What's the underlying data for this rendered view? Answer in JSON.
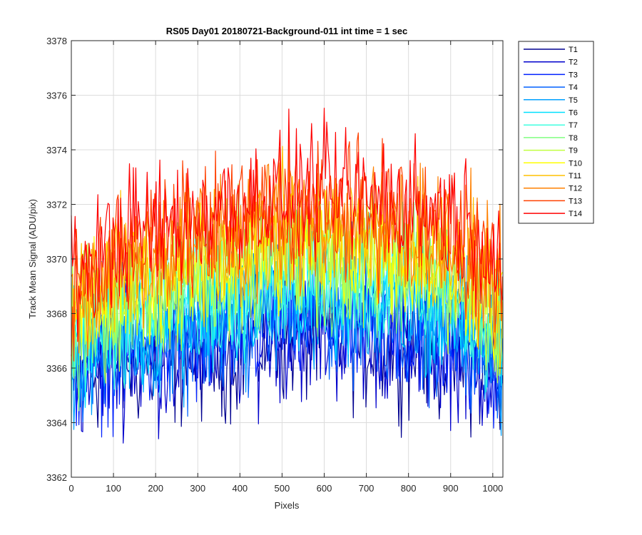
{
  "chart_data": {
    "type": "line",
    "title": "RS05 Day01 20180721-Background-011 int time = 1 sec",
    "xlabel": "Pixels",
    "ylabel": "Track Mean Signal (ADU/pix)",
    "xlim": [
      0,
      1024
    ],
    "ylim": [
      3362,
      3378
    ],
    "xticks": [
      0,
      100,
      200,
      300,
      400,
      500,
      600,
      700,
      800,
      900,
      1000
    ],
    "yticks": [
      3362,
      3364,
      3366,
      3368,
      3370,
      3372,
      3374,
      3376,
      3378
    ],
    "grid": true,
    "legend_position": "outside-right",
    "x_points": [
      0,
      50,
      100,
      150,
      200,
      250,
      300,
      350,
      400,
      450,
      500,
      550,
      600,
      650,
      700,
      750,
      800,
      850,
      900,
      950,
      1000,
      1023
    ],
    "noise_amplitude": 1.2,
    "series": [
      {
        "name": "T1",
        "color": "#00008f",
        "values": [
          3365.5,
          3366.0,
          3366.2,
          3366.3,
          3366.2,
          3366.3,
          3366.5,
          3366.6,
          3366.8,
          3367.0,
          3367.2,
          3367.2,
          3367.2,
          3367.1,
          3367.0,
          3367.0,
          3366.8,
          3366.7,
          3366.5,
          3366.2,
          3365.8,
          3365.5
        ]
      },
      {
        "name": "T2",
        "color": "#0000cc",
        "values": [
          3365.6,
          3366.1,
          3366.3,
          3366.4,
          3366.3,
          3366.4,
          3366.6,
          3366.7,
          3366.9,
          3367.1,
          3367.3,
          3367.3,
          3367.3,
          3367.2,
          3367.1,
          3367.1,
          3366.9,
          3366.8,
          3366.6,
          3366.3,
          3365.9,
          3365.6
        ]
      },
      {
        "name": "T3",
        "color": "#0020ff",
        "values": [
          3365.8,
          3366.3,
          3366.5,
          3366.7,
          3366.6,
          3366.8,
          3367.0,
          3367.1,
          3367.3,
          3367.5,
          3367.7,
          3367.7,
          3367.7,
          3367.6,
          3367.5,
          3367.5,
          3367.3,
          3367.2,
          3367.0,
          3366.6,
          3366.2,
          3365.9
        ]
      },
      {
        "name": "T4",
        "color": "#0060ff",
        "values": [
          3366.0,
          3366.5,
          3366.8,
          3367.0,
          3366.9,
          3367.1,
          3367.4,
          3367.5,
          3367.7,
          3367.9,
          3368.1,
          3368.1,
          3368.1,
          3368.0,
          3367.9,
          3367.9,
          3367.7,
          3367.6,
          3367.4,
          3367.0,
          3366.5,
          3366.2
        ]
      },
      {
        "name": "T5",
        "color": "#00a0ff",
        "values": [
          3366.3,
          3366.8,
          3367.1,
          3367.4,
          3367.3,
          3367.5,
          3367.8,
          3367.9,
          3368.1,
          3368.3,
          3368.5,
          3368.5,
          3368.5,
          3368.4,
          3368.3,
          3368.3,
          3368.1,
          3368.0,
          3367.8,
          3367.4,
          3366.9,
          3366.5
        ]
      },
      {
        "name": "T6",
        "color": "#00e0ff",
        "values": [
          3366.6,
          3367.1,
          3367.5,
          3367.8,
          3367.7,
          3367.9,
          3368.2,
          3368.4,
          3368.6,
          3368.8,
          3369.0,
          3369.0,
          3369.0,
          3368.9,
          3368.8,
          3368.8,
          3368.6,
          3368.4,
          3368.2,
          3367.8,
          3367.3,
          3366.8
        ]
      },
      {
        "name": "T7",
        "color": "#40ffe0",
        "values": [
          3366.9,
          3367.4,
          3367.8,
          3368.2,
          3368.1,
          3368.3,
          3368.6,
          3368.8,
          3369.0,
          3369.2,
          3369.4,
          3369.4,
          3369.4,
          3369.3,
          3369.2,
          3369.2,
          3369.0,
          3368.8,
          3368.6,
          3368.2,
          3367.6,
          3367.1
        ]
      },
      {
        "name": "T8",
        "color": "#80ff80",
        "values": [
          3367.2,
          3367.7,
          3368.2,
          3368.6,
          3368.5,
          3368.7,
          3369.0,
          3369.2,
          3369.4,
          3369.6,
          3369.8,
          3369.8,
          3369.8,
          3369.7,
          3369.6,
          3369.6,
          3369.4,
          3369.2,
          3369.0,
          3368.6,
          3368.0,
          3367.4
        ]
      },
      {
        "name": "T9",
        "color": "#c0ff40",
        "values": [
          3367.5,
          3368.0,
          3368.5,
          3369.0,
          3368.9,
          3369.1,
          3369.4,
          3369.6,
          3369.8,
          3370.0,
          3370.2,
          3370.2,
          3370.2,
          3370.1,
          3370.0,
          3370.0,
          3369.8,
          3369.6,
          3369.4,
          3369.0,
          3368.3,
          3367.7
        ]
      },
      {
        "name": "T10",
        "color": "#ffff00",
        "values": [
          3367.8,
          3368.3,
          3368.9,
          3369.4,
          3369.3,
          3369.5,
          3369.8,
          3370.0,
          3370.2,
          3370.4,
          3370.6,
          3370.6,
          3370.6,
          3370.5,
          3370.4,
          3370.4,
          3370.2,
          3370.0,
          3369.8,
          3369.3,
          3368.6,
          3368.0
        ]
      },
      {
        "name": "T11",
        "color": "#ffc000",
        "values": [
          3368.1,
          3368.7,
          3369.3,
          3369.8,
          3369.7,
          3369.9,
          3370.2,
          3370.4,
          3370.6,
          3370.8,
          3371.0,
          3371.0,
          3371.0,
          3370.9,
          3370.8,
          3370.8,
          3370.6,
          3370.4,
          3370.2,
          3369.7,
          3369.0,
          3368.3
        ]
      },
      {
        "name": "T12",
        "color": "#ff8000",
        "values": [
          3368.4,
          3369.0,
          3369.7,
          3370.2,
          3370.1,
          3370.3,
          3370.6,
          3370.8,
          3371.0,
          3371.2,
          3371.4,
          3371.4,
          3371.4,
          3371.3,
          3371.2,
          3371.2,
          3371.0,
          3370.8,
          3370.6,
          3370.1,
          3369.3,
          3368.6
        ]
      },
      {
        "name": "T13",
        "color": "#ff4000",
        "values": [
          3368.8,
          3369.5,
          3370.2,
          3370.7,
          3370.6,
          3370.8,
          3371.1,
          3371.3,
          3371.5,
          3371.7,
          3371.9,
          3371.9,
          3371.9,
          3371.8,
          3371.7,
          3371.7,
          3371.5,
          3371.3,
          3371.1,
          3370.6,
          3369.8,
          3369.0
        ]
      },
      {
        "name": "T14",
        "color": "#ff0000",
        "values": [
          3369.2,
          3369.9,
          3370.6,
          3371.1,
          3371.1,
          3371.3,
          3371.6,
          3371.8,
          3372.0,
          3372.2,
          3372.4,
          3372.4,
          3372.4,
          3372.3,
          3372.2,
          3372.2,
          3372.0,
          3371.8,
          3371.6,
          3371.1,
          3370.3,
          3369.5
        ]
      }
    ]
  }
}
